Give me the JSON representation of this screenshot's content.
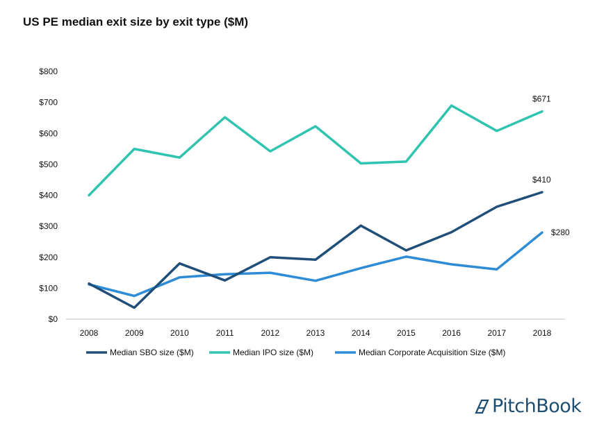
{
  "chart_data": {
    "type": "line",
    "title": "US PE median exit size by exit type ($M)",
    "x": [
      "2008",
      "2009",
      "2010",
      "2011",
      "2012",
      "2013",
      "2014",
      "2015",
      "2016",
      "2017",
      "2018"
    ],
    "ylim": [
      0,
      800
    ],
    "yticks": [
      "$0",
      "$100",
      "$200",
      "$300",
      "$400",
      "$500",
      "$600",
      "$700",
      "$800"
    ],
    "ytick_values": [
      0,
      100,
      200,
      300,
      400,
      500,
      600,
      700,
      800
    ],
    "grid": false,
    "legend_position": "bottom",
    "series": [
      {
        "name": "Median SBO size ($M)",
        "color": "#1f4e79",
        "values": [
          115,
          37,
          180,
          125,
          200,
          192,
          302,
          222,
          281,
          363,
          410
        ],
        "end_label": "$410"
      },
      {
        "name": "Median IPO size ($M)",
        "color": "#2ec4b0",
        "values": [
          400,
          550,
          522,
          652,
          542,
          623,
          503,
          509,
          690,
          608,
          671
        ],
        "end_label": "$671"
      },
      {
        "name": "Median Corporate Acquisition Size ($M)",
        "color": "#2e8bd6",
        "values": [
          112,
          75,
          135,
          145,
          150,
          124,
          165,
          202,
          177,
          161,
          280
        ],
        "end_label": "$280"
      }
    ]
  },
  "branding": {
    "logo_text": "PitchBook",
    "logo_icon": "pitchbook-logo-icon"
  }
}
